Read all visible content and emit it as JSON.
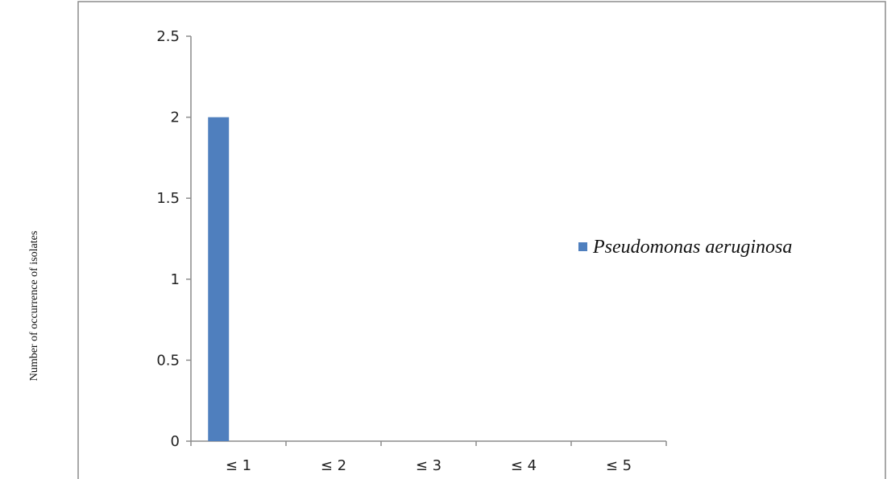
{
  "chart_data": {
    "type": "bar",
    "categories": [
      "≤ 1",
      "≤ 2",
      "≤ 3",
      "≤ 4",
      "≤ 5"
    ],
    "series": [
      {
        "name": "Pseudomonas aeruginosa",
        "values": [
          2,
          0,
          0,
          0,
          0
        ],
        "color": "#4F7FBE"
      }
    ],
    "yticks": [
      "0",
      "0.5",
      "1",
      "1.5",
      "2",
      "2.5"
    ],
    "ylim": [
      0,
      2.5
    ],
    "ylabel": "Number of occurrence of isolates",
    "xlabel": "",
    "title": "",
    "grid": false,
    "legend_position": "right"
  }
}
